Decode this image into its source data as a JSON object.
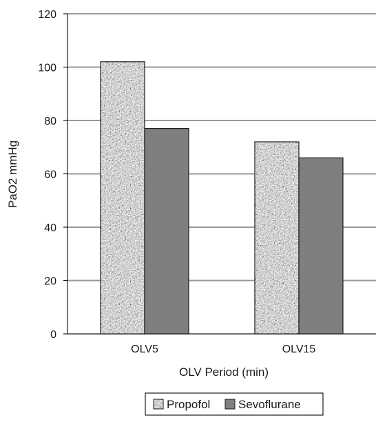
{
  "chart_data": {
    "type": "bar",
    "title": "",
    "xlabel": "OLV Period (min)",
    "ylabel": "PaO2 mmHg",
    "categories": [
      "OLV5",
      "OLV15"
    ],
    "series": [
      {
        "name": "Propofol",
        "values": [
          102,
          72
        ],
        "pattern": "speckled-gray"
      },
      {
        "name": "Sevoflurane",
        "values": [
          77,
          66
        ],
        "color": "#7f7f7f"
      }
    ],
    "ylim": [
      0,
      120
    ],
    "yticks": [
      0,
      20,
      40,
      60,
      80,
      100,
      120
    ],
    "grid": true,
    "legend_position": "bottom"
  }
}
